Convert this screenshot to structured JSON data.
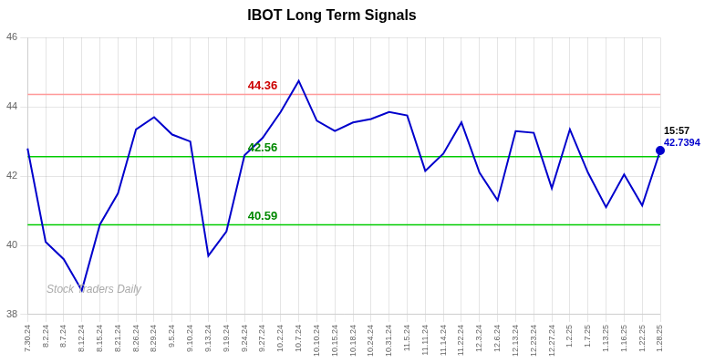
{
  "chart_data": {
    "type": "line",
    "title": "IBOT Long Term Signals",
    "categories": [
      "7.30.24",
      "8.2.24",
      "8.7.24",
      "8.12.24",
      "8.15.24",
      "8.21.24",
      "8.26.24",
      "8.29.24",
      "9.5.24",
      "9.10.24",
      "9.13.24",
      "9.19.24",
      "9.24.24",
      "9.27.24",
      "10.2.24",
      "10.7.24",
      "10.10.24",
      "10.15.24",
      "10.18.24",
      "10.24.24",
      "10.31.24",
      "11.5.24",
      "11.11.24",
      "11.14.24",
      "11.22.24",
      "12.3.24",
      "12.6.24",
      "12.13.24",
      "12.23.24",
      "12.27.24",
      "1.2.25",
      "1.7.25",
      "1.13.25",
      "1.16.25",
      "1.22.25",
      "1.28.25"
    ],
    "values": [
      42.8,
      40.1,
      39.6,
      38.7,
      40.6,
      41.5,
      43.35,
      43.7,
      43.2,
      43.0,
      39.7,
      40.4,
      42.6,
      43.1,
      43.85,
      44.75,
      43.6,
      43.3,
      43.55,
      43.65,
      43.85,
      43.75,
      42.15,
      42.65,
      43.55,
      42.1,
      41.3,
      43.3,
      43.25,
      41.65,
      43.35,
      42.1,
      41.1,
      42.05,
      41.15,
      42.7394
    ],
    "color": "#0000cc",
    "ylim": [
      38,
      46
    ],
    "yticks": [
      38,
      40,
      42,
      44,
      46
    ],
    "grid": true,
    "reference_lines": [
      {
        "y": 44.36,
        "color": "#ff9999",
        "label": "44.36",
        "label_color": "#cc0000",
        "x": "9.27.24"
      },
      {
        "y": 42.56,
        "color": "#00cc00",
        "label": "42.56",
        "label_color": "#008800",
        "x": "9.27.24"
      },
      {
        "y": 40.59,
        "color": "#00cc00",
        "label": "40.59",
        "label_color": "#008800",
        "x": "9.27.24"
      }
    ],
    "annotations": [
      {
        "text": "15:57",
        "x": "1.28.25",
        "y": 42.7394,
        "color": "#000000"
      },
      {
        "text": "42.7394",
        "x": "1.28.25",
        "y": 42.7394,
        "color": "#0000cc"
      },
      {
        "text": "Stock Traders Daily",
        "color": "#aaaaaa"
      }
    ]
  }
}
